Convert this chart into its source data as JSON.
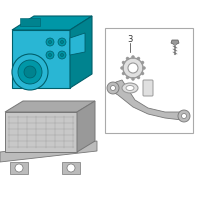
{
  "bg_color": "#ffffff",
  "hydraulic_color_main": "#29b6d4",
  "hydraulic_color_dark": "#0097a7",
  "hydraulic_color_side": "#00838f",
  "hydraulic_outline": "#005f6b",
  "ecu_color": "#c8c8c8",
  "ecu_dark": "#aaaaaa",
  "ecu_outline": "#777777",
  "bracket_color": "#bbbbbb",
  "bracket_outline": "#777777",
  "hardware_color": "#999999",
  "hardware_outline": "#555555",
  "box_border": "#aaaaaa",
  "text_color": "#333333",
  "label3": "3"
}
